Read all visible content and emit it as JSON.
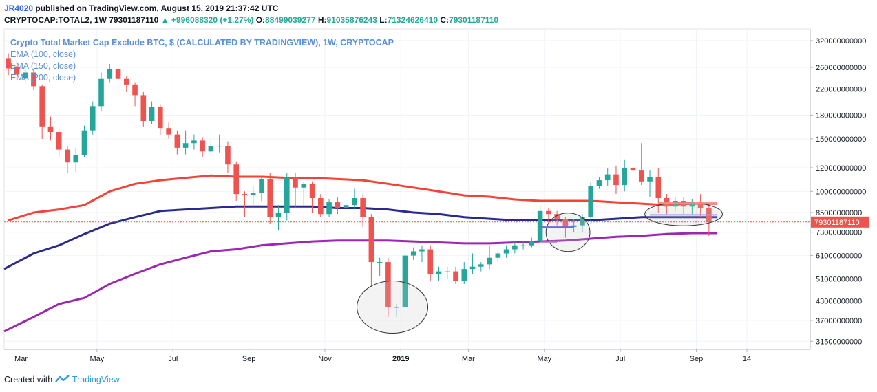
{
  "header": {
    "user": "JR4020",
    "published_text": " published on TradingView.com, August 15, 2019 21:37:42 UTC",
    "symbol": "CRYPTOCAP:TOTAL2, 1W",
    "last": "79301187110",
    "change": "+996088320 (+1.27%)",
    "o_label": "O:",
    "o_value": "88499039277",
    "h_label": "H:",
    "h_value": "91035876243",
    "l_label": "L:",
    "l_value": "71324626410",
    "c_label": "C:",
    "c_value": "79301187110"
  },
  "legend": {
    "title": "Crypto Total Market Cap Exclude BTC, $ (CALCULATED BY TRADINGVIEW), 1W, CRYPTOCAP",
    "ema1": "EMA (100, close)",
    "ema2": "EMA (150, close)",
    "ema3": "EMA (200, close)"
  },
  "footer": {
    "prefix": "Created with",
    "brand": "TradingView"
  },
  "colors": {
    "up": "#26a69a",
    "down": "#ef5350",
    "ema100": "#f44336",
    "ema150": "#2a2a8c",
    "ema200": "#9c27b0",
    "price_tag": "#ef5350"
  },
  "chart_data": {
    "type": "candlestick",
    "scale": "log",
    "price_tag": "79301187110",
    "y_ticks": [
      "320000000000",
      "260000000000",
      "220000000000",
      "180000000000",
      "150000000000",
      "120000000000",
      "100000000000",
      "85000000000",
      "73000000000",
      "61000000000",
      "51000000000",
      "43000000000",
      "37000000000",
      "31500000000"
    ],
    "y_tick_values": [
      320,
      260,
      220,
      180,
      150,
      120,
      100,
      85,
      73,
      61,
      51,
      43,
      37,
      31.5
    ],
    "ylim": [
      29.6,
      350
    ],
    "x_ticks": [
      {
        "label": "Mar",
        "week": 1.5
      },
      {
        "label": "May",
        "week": 10.5
      },
      {
        "label": "Jul",
        "week": 19.5
      },
      {
        "label": "Sep",
        "week": 28.5
      },
      {
        "label": "Nov",
        "week": 37.5
      },
      {
        "label": "2019",
        "week": 46.5
      },
      {
        "label": "Mar",
        "week": 54.5
      },
      {
        "label": "May",
        "week": 63.5
      },
      {
        "label": "Jul",
        "week": 72.5
      },
      {
        "label": "Sep",
        "week": 81.5
      },
      {
        "label": "14",
        "week": 87.5
      }
    ],
    "x_range": [
      -0.5,
      95
    ],
    "units": "billion USD",
    "candles": [
      [
        278,
        258,
        290,
        245
      ],
      [
        262,
        246,
        275,
        235
      ],
      [
        240,
        250,
        262,
        232
      ],
      [
        250,
        225,
        257,
        218
      ],
      [
        225,
        165,
        228,
        150
      ],
      [
        165,
        158,
        178,
        148
      ],
      [
        158,
        138,
        162,
        130
      ],
      [
        138,
        125,
        142,
        115
      ],
      [
        125,
        132,
        140,
        116
      ],
      [
        132,
        160,
        166,
        130
      ],
      [
        160,
        193,
        200,
        155
      ],
      [
        193,
        238,
        250,
        185
      ],
      [
        238,
        256,
        267,
        232
      ],
      [
        256,
        238,
        262,
        205
      ],
      [
        238,
        228,
        243,
        215
      ],
      [
        228,
        210,
        232,
        193
      ],
      [
        210,
        172,
        215,
        165
      ],
      [
        172,
        192,
        200,
        168
      ],
      [
        192,
        163,
        196,
        154
      ],
      [
        163,
        155,
        170,
        150
      ],
      [
        155,
        140,
        160,
        133
      ],
      [
        140,
        145,
        160,
        133
      ],
      [
        145,
        148,
        155,
        138
      ],
      [
        148,
        136,
        152,
        130
      ],
      [
        136,
        142,
        150,
        130
      ],
      [
        142,
        142,
        155,
        135
      ],
      [
        142,
        123,
        147,
        115
      ],
      [
        123,
        98,
        126,
        93
      ],
      [
        98,
        97,
        100,
        82
      ],
      [
        97,
        99,
        104,
        88
      ],
      [
        99,
        110,
        112,
        93
      ],
      [
        110,
        82,
        115,
        78
      ],
      [
        82,
        85,
        90,
        74
      ],
      [
        85,
        111,
        115,
        80
      ],
      [
        111,
        103,
        115,
        88
      ],
      [
        103,
        106,
        108,
        90
      ],
      [
        106,
        95,
        108,
        85
      ],
      [
        95,
        84,
        98,
        82
      ],
      [
        84,
        92,
        94,
        82
      ],
      [
        92,
        88,
        96,
        84
      ],
      [
        88,
        90,
        94,
        86
      ],
      [
        90,
        95,
        102,
        87
      ],
      [
        95,
        82,
        98,
        76
      ],
      [
        82,
        58,
        84,
        48
      ],
      [
        58,
        58,
        60,
        52
      ],
      [
        58,
        41,
        60,
        38
      ],
      [
        41,
        41,
        42,
        38
      ],
      [
        41,
        61,
        66,
        41
      ],
      [
        61,
        63,
        65,
        59
      ],
      [
        63,
        64,
        66,
        58
      ],
      [
        64,
        53,
        66,
        50
      ],
      [
        53,
        54,
        56,
        50
      ],
      [
        54,
        54,
        56,
        51
      ],
      [
        54,
        50,
        56,
        49
      ],
      [
        50,
        55,
        58,
        49
      ],
      [
        55,
        56,
        62,
        53
      ],
      [
        56,
        57,
        58,
        54
      ],
      [
        57,
        60,
        66,
        55
      ],
      [
        60,
        62,
        63,
        58
      ],
      [
        62,
        64,
        66,
        60
      ],
      [
        64,
        66,
        68,
        62
      ],
      [
        66,
        66,
        68,
        64
      ],
      [
        66,
        68,
        70,
        65
      ],
      [
        68,
        86,
        90,
        68
      ],
      [
        86,
        84,
        88,
        78
      ],
      [
        84,
        81,
        86,
        77
      ],
      [
        81,
        76,
        82,
        70
      ],
      [
        76,
        77,
        81,
        73
      ],
      [
        77,
        82,
        84,
        73
      ],
      [
        82,
        104,
        108,
        78
      ],
      [
        104,
        109,
        112,
        102
      ],
      [
        109,
        114,
        120,
        104
      ],
      [
        114,
        105,
        122,
        98
      ],
      [
        105,
        120,
        128,
        100
      ],
      [
        120,
        118,
        140,
        108
      ],
      [
        118,
        108,
        145,
        105
      ],
      [
        108,
        112,
        118,
        96
      ],
      [
        112,
        95,
        120,
        85
      ],
      [
        95,
        89,
        98,
        84
      ],
      [
        89,
        93,
        96,
        86
      ],
      [
        93,
        89,
        96,
        84
      ],
      [
        89,
        92,
        94,
        84
      ],
      [
        92,
        88,
        98,
        82
      ],
      [
        88,
        79,
        91,
        71
      ]
    ],
    "series": [
      {
        "name": "EMA (100, close)",
        "color": "#f44336",
        "values": [
          [
            0,
            80
          ],
          [
            3,
            85
          ],
          [
            6,
            87
          ],
          [
            9,
            90
          ],
          [
            12,
            100
          ],
          [
            15,
            106
          ],
          [
            18,
            109
          ],
          [
            21,
            111
          ],
          [
            24,
            113
          ],
          [
            27,
            112
          ],
          [
            30,
            112
          ],
          [
            33,
            111
          ],
          [
            36,
            111
          ],
          [
            39,
            110
          ],
          [
            42,
            109
          ],
          [
            45,
            106
          ],
          [
            48,
            103
          ],
          [
            51,
            100
          ],
          [
            54,
            97
          ],
          [
            57,
            96
          ],
          [
            60,
            94
          ],
          [
            63,
            93
          ],
          [
            66,
            93
          ],
          [
            69,
            93
          ],
          [
            72,
            92
          ],
          [
            75,
            91
          ],
          [
            78,
            90
          ],
          [
            81,
            91
          ],
          [
            84,
            91
          ]
        ]
      },
      {
        "name": "EMA (150, close)",
        "color": "#2a2a8c",
        "values": [
          [
            -0.5,
            55
          ],
          [
            3,
            62
          ],
          [
            6,
            66
          ],
          [
            9,
            72
          ],
          [
            12,
            78
          ],
          [
            15,
            82
          ],
          [
            18,
            86
          ],
          [
            21,
            87
          ],
          [
            24,
            88
          ],
          [
            27,
            89
          ],
          [
            30,
            89
          ],
          [
            33,
            89
          ],
          [
            36,
            89
          ],
          [
            39,
            88
          ],
          [
            42,
            88
          ],
          [
            45,
            87
          ],
          [
            48,
            85
          ],
          [
            51,
            84
          ],
          [
            54,
            82
          ],
          [
            57,
            81
          ],
          [
            60,
            80
          ],
          [
            63,
            80
          ],
          [
            66,
            80
          ],
          [
            69,
            80
          ],
          [
            72,
            81
          ],
          [
            75,
            82
          ],
          [
            78,
            82
          ],
          [
            81,
            82
          ],
          [
            84,
            82
          ]
        ]
      },
      {
        "name": "EMA (200, close)",
        "color": "#9c27b0",
        "values": [
          [
            -0.5,
            34
          ],
          [
            3,
            38
          ],
          [
            6,
            42
          ],
          [
            9,
            44
          ],
          [
            12,
            49
          ],
          [
            15,
            53
          ],
          [
            18,
            57
          ],
          [
            21,
            60
          ],
          [
            24,
            63
          ],
          [
            27,
            64
          ],
          [
            30,
            66
          ],
          [
            33,
            67
          ],
          [
            36,
            68
          ],
          [
            39,
            68.5
          ],
          [
            42,
            68.5
          ],
          [
            45,
            68.5
          ],
          [
            48,
            68
          ],
          [
            51,
            67.5
          ],
          [
            54,
            67
          ],
          [
            57,
            67
          ],
          [
            60,
            67.5
          ],
          [
            63,
            68
          ],
          [
            66,
            68.5
          ],
          [
            69,
            69.5
          ],
          [
            72,
            70.5
          ],
          [
            75,
            71
          ],
          [
            78,
            72
          ],
          [
            81,
            72.5
          ],
          [
            84,
            72.5
          ]
        ]
      }
    ],
    "annotations": [
      {
        "type": "ellipse",
        "cx_week": 45.5,
        "cy": 41,
        "rx_weeks": 4.2
      },
      {
        "type": "ellipse",
        "cx_week": 66.3,
        "cy": 73,
        "rx_weeks": 2.6
      },
      {
        "type": "ellipse",
        "cx_week": 80,
        "cy": 84,
        "rx_weeks": 4.6
      },
      {
        "type": "hline",
        "from_week": 63,
        "to_week": 67,
        "value": 76,
        "color": "#6b6bd6"
      },
      {
        "type": "hline",
        "from_week": 63,
        "to_week": 65,
        "value": 67.5,
        "color": "#c48fdf"
      },
      {
        "type": "hline",
        "from_week": 77,
        "to_week": 84,
        "value": 91.5,
        "color": "#f28b82"
      },
      {
        "type": "hline",
        "from_week": 76,
        "to_week": 84,
        "value": 83.5,
        "color": "#9aa0e6"
      }
    ],
    "title": "Crypto Total Market Cap Exclude BTC, $ (CALCULATED BY TRADINGVIEW), 1W, CRYPTOCAP",
    "xlabel": "",
    "ylabel": ""
  }
}
